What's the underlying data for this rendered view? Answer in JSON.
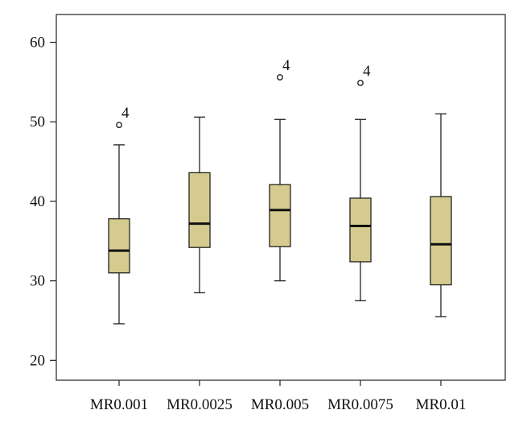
{
  "chart_data": {
    "type": "box",
    "title": "",
    "xlabel": "",
    "ylabel": "",
    "ylim": [
      17.5,
      63.5
    ],
    "yticks": [
      20,
      30,
      40,
      50,
      60
    ],
    "categories": [
      "MR0.001",
      "MR0.0025",
      "MR0.005",
      "MR0.0075",
      "MR0.01"
    ],
    "box_color": "#d6cb8e",
    "series": [
      {
        "category": "MR0.001",
        "whisker_low": 24.6,
        "q1": 31.0,
        "median": 33.8,
        "q3": 37.8,
        "whisker_high": 47.1,
        "outliers": [
          {
            "value": 49.6,
            "label": "4"
          }
        ]
      },
      {
        "category": "MR0.0025",
        "whisker_low": 28.5,
        "q1": 34.2,
        "median": 37.2,
        "q3": 43.6,
        "whisker_high": 50.6,
        "outliers": []
      },
      {
        "category": "MR0.005",
        "whisker_low": 30.0,
        "q1": 34.3,
        "median": 38.9,
        "q3": 42.1,
        "whisker_high": 50.3,
        "outliers": [
          {
            "value": 55.6,
            "label": "4"
          }
        ]
      },
      {
        "category": "MR0.0075",
        "whisker_low": 27.5,
        "q1": 32.4,
        "median": 36.9,
        "q3": 40.4,
        "whisker_high": 50.3,
        "outliers": [
          {
            "value": 54.9,
            "label": "4"
          }
        ]
      },
      {
        "category": "MR0.01",
        "whisker_low": 25.5,
        "q1": 29.5,
        "median": 34.6,
        "q3": 40.6,
        "whisker_high": 51.0,
        "outliers": []
      }
    ]
  }
}
